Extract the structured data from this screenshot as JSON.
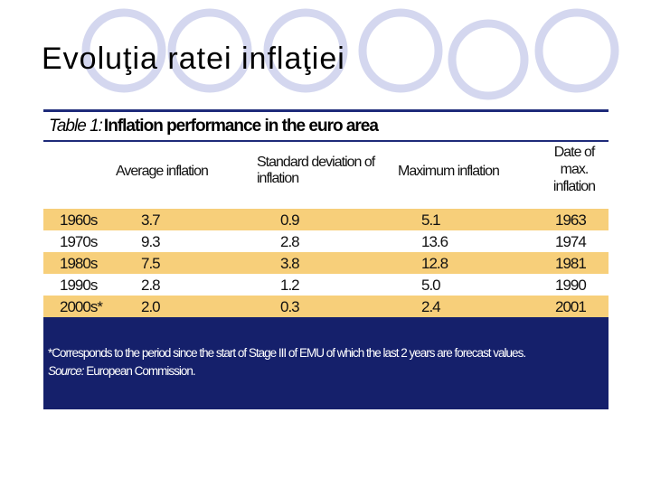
{
  "slide": {
    "title": "Evoluţia ratei inflaţiei"
  },
  "table": {
    "title_lead": "Table 1:",
    "title_main": "Inflation performance in the euro area",
    "headers": {
      "average": "Average inflation",
      "std_dev": "Standard deviation of inflation",
      "maximum": "Maximum inflation",
      "date_of_max": "Date of max. inflation"
    },
    "rows": [
      [
        "1960s",
        "3.7",
        "0.9",
        "5.1",
        "1963"
      ],
      [
        "1970s",
        "9.3",
        "2.8",
        "13.6",
        "1974"
      ],
      [
        "1980s",
        "7.5",
        "3.8",
        "12.8",
        "1981"
      ],
      [
        "1990s",
        "2.8",
        "1.2",
        "5.0",
        "1990"
      ],
      [
        "2000s*",
        "2.0",
        "0.3",
        "2.4",
        "2001"
      ]
    ],
    "footnote": "*Corresponds to the period since the start of Stage III of EMU of which the last 2 years are forecast values.",
    "source_label": "Source:",
    "source_value": "European Commission.",
    "colors": {
      "band": "#f7cf7a",
      "footer": "#15206b",
      "rule": "#1e2b7a"
    }
  },
  "decoration": {
    "circle_color": "#d4d7ef"
  }
}
